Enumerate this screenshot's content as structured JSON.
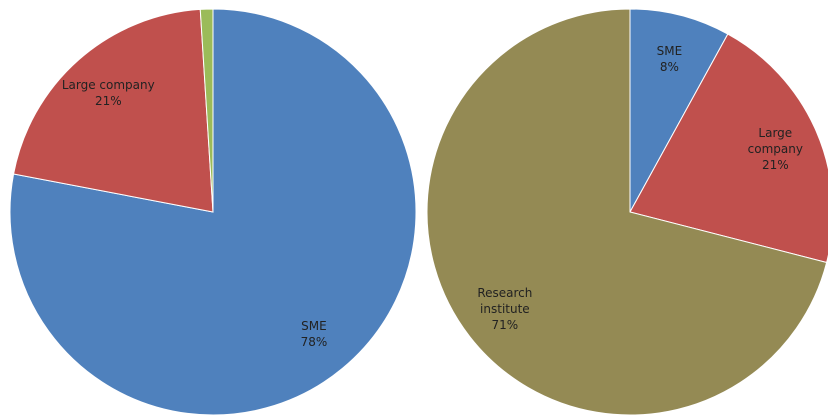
{
  "chart_data": [
    {
      "type": "pie",
      "categories": [
        "SME",
        "Large company",
        null
      ],
      "values": [
        78,
        21,
        1
      ],
      "value_labels": [
        "78%",
        "21%",
        null
      ],
      "colors": [
        "#4f81bd",
        "#c0504d",
        "#9bbb59"
      ]
    },
    {
      "type": "pie",
      "categories": [
        "SME",
        "Large company",
        "Research institute"
      ],
      "values": [
        8,
        21,
        71
      ],
      "value_labels": [
        "8%",
        "21%",
        "71%"
      ],
      "colors": [
        "#4f81bd",
        "#c0504d",
        "#948a54"
      ]
    }
  ]
}
